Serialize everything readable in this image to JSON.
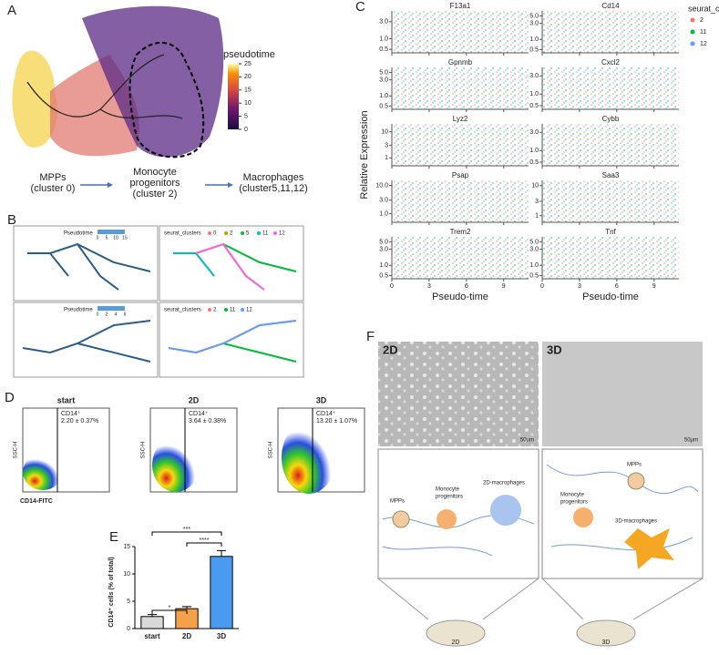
{
  "panels": {
    "a": {
      "label": "A",
      "legend_title": "pseudotime",
      "clim": [
        0,
        25
      ],
      "colorbar_ticks": [
        25,
        20,
        15,
        10,
        5,
        0
      ],
      "stages": [
        [
          "MPPs",
          "(cluster 0)"
        ],
        [
          "Monocyte",
          "progenitors",
          "(cluster 2)"
        ],
        [
          "Macrophages",
          "(cluster5,11,12)"
        ]
      ]
    },
    "b": {
      "label": "B",
      "legend_pseudotime": "Pseudotime",
      "legend_clusters": "seurat_clusters",
      "top_ticks": [
        0,
        5,
        10,
        15
      ],
      "bottom_ticks": [
        0,
        2,
        4,
        6
      ],
      "top_clusters": [
        {
          "name": "0",
          "color": "#f8766d"
        },
        {
          "name": "2",
          "color": "#b79f00"
        },
        {
          "name": "5",
          "color": "#00ba38"
        },
        {
          "name": "11",
          "color": "#00bfc4"
        },
        {
          "name": "12",
          "color": "#f564e3"
        }
      ],
      "bottom_clusters": [
        {
          "name": "2",
          "color": "#f8766d"
        },
        {
          "name": "11",
          "color": "#00ba38"
        },
        {
          "name": "12",
          "color": "#619cff"
        }
      ]
    },
    "c": {
      "label": "C",
      "y_label": "Relative Expression",
      "x_label": "Pseudo-time",
      "legend_title": "seurat_clusters",
      "legend": [
        {
          "name": "2",
          "color": "#f8766d"
        },
        {
          "name": "11",
          "color": "#00ba38"
        },
        {
          "name": "12",
          "color": "#619cff"
        }
      ],
      "xlim": [
        0,
        11
      ],
      "xticks": [
        0,
        3,
        6,
        9
      ],
      "log_scale": true,
      "genes": [
        {
          "name": "F13a1",
          "ylim": [
            0.4,
            6
          ],
          "yticks": [
            0.5,
            {
              "value": 1,
              "label": "1.0"
            },
            {
              "value": 3,
              "label": "3.0"
            }
          ]
        },
        {
          "name": "Cd14",
          "ylim": [
            0.4,
            7
          ],
          "yticks": [
            0.5,
            {
              "value": 1,
              "label": "1.0"
            },
            {
              "value": 3,
              "label": "3.0"
            },
            {
              "value": 5,
              "label": "5.0"
            }
          ]
        },
        {
          "name": "Gpnmb",
          "ylim": [
            0.4,
            7
          ],
          "yticks": [
            0.5,
            {
              "value": 1,
              "label": "1.0"
            },
            {
              "value": 3,
              "label": "3.0"
            },
            {
              "value": 5,
              "label": "5.0"
            }
          ]
        },
        {
          "name": "Cxcl2",
          "ylim": [
            0.4,
            5
          ],
          "yticks": [
            0.5,
            {
              "value": 1,
              "label": "1.0"
            },
            {
              "value": 3,
              "label": "3.0"
            }
          ]
        },
        {
          "name": "Lyz2",
          "ylim": [
            0.5,
            20
          ],
          "yticks": [
            1,
            3,
            10
          ]
        },
        {
          "name": "Cybb",
          "ylim": [
            0.4,
            5
          ],
          "yticks": [
            0.5,
            {
              "value": 1,
              "label": "1.0"
            },
            {
              "value": 3,
              "label": "3.0"
            }
          ]
        },
        {
          "name": "Psap",
          "ylim": [
            0.5,
            15
          ],
          "yticks": [
            {
              "value": 1,
              "label": "1.0"
            },
            {
              "value": 3,
              "label": "3.0"
            },
            {
              "value": 10,
              "label": "10.0"
            }
          ]
        },
        {
          "name": "Saa3",
          "ylim": [
            0.6,
            15
          ],
          "yticks": [
            1,
            3,
            10
          ]
        },
        {
          "name": "Trem2",
          "ylim": [
            0.4,
            7
          ],
          "yticks": [
            0.5,
            {
              "value": 1,
              "label": "1.0"
            },
            {
              "value": 3,
              "label": "3.0"
            },
            {
              "value": 5,
              "label": "5.0"
            }
          ]
        },
        {
          "name": "Tnf",
          "ylim": [
            0.4,
            7
          ],
          "yticks": [
            0.5,
            {
              "value": 1,
              "label": "1.0"
            },
            {
              "value": 3,
              "label": "3.0"
            },
            {
              "value": 5,
              "label": "5.0"
            }
          ]
        }
      ]
    },
    "d": {
      "label": "D",
      "y_axis": "SSC-H",
      "x_axis": "CD14-FITC",
      "plots": [
        {
          "title": "start",
          "gate": "CD14⁺",
          "stat": "2.20 ± 0.37%"
        },
        {
          "title": "2D",
          "gate": "CD14⁺",
          "stat": "3.64 ± 0.38%"
        },
        {
          "title": "3D",
          "gate": "CD14⁺",
          "stat": "13.20 ± 1.07%"
        }
      ]
    },
    "e": {
      "label": "E",
      "significance": [
        "***",
        "****",
        "*"
      ]
    },
    "f": {
      "label": "F",
      "left": "2D",
      "right": "3D",
      "scale": "50μm",
      "left_cells": [
        "MPPs",
        "Monocyte",
        "progenitors",
        "2D-macrophages"
      ],
      "right_cells": [
        "MPPs",
        "Monocyte",
        "progenitors",
        "3D-macrophages"
      ],
      "dishes": [
        "2D",
        "3D"
      ]
    }
  },
  "chart_data": {
    "type": "bar",
    "y_label": "CD14⁺ cells (% of total)",
    "categories": [
      "start",
      "2D",
      "3D"
    ],
    "values": [
      2.2,
      3.64,
      13.2
    ],
    "errors": [
      0.37,
      0.38,
      1.07
    ],
    "colors": [
      "#d9d9d9",
      "#f5a04a",
      "#4a9bf0"
    ],
    "ylim": [
      0,
      15
    ],
    "yticks": [
      0,
      5,
      10,
      15
    ]
  }
}
